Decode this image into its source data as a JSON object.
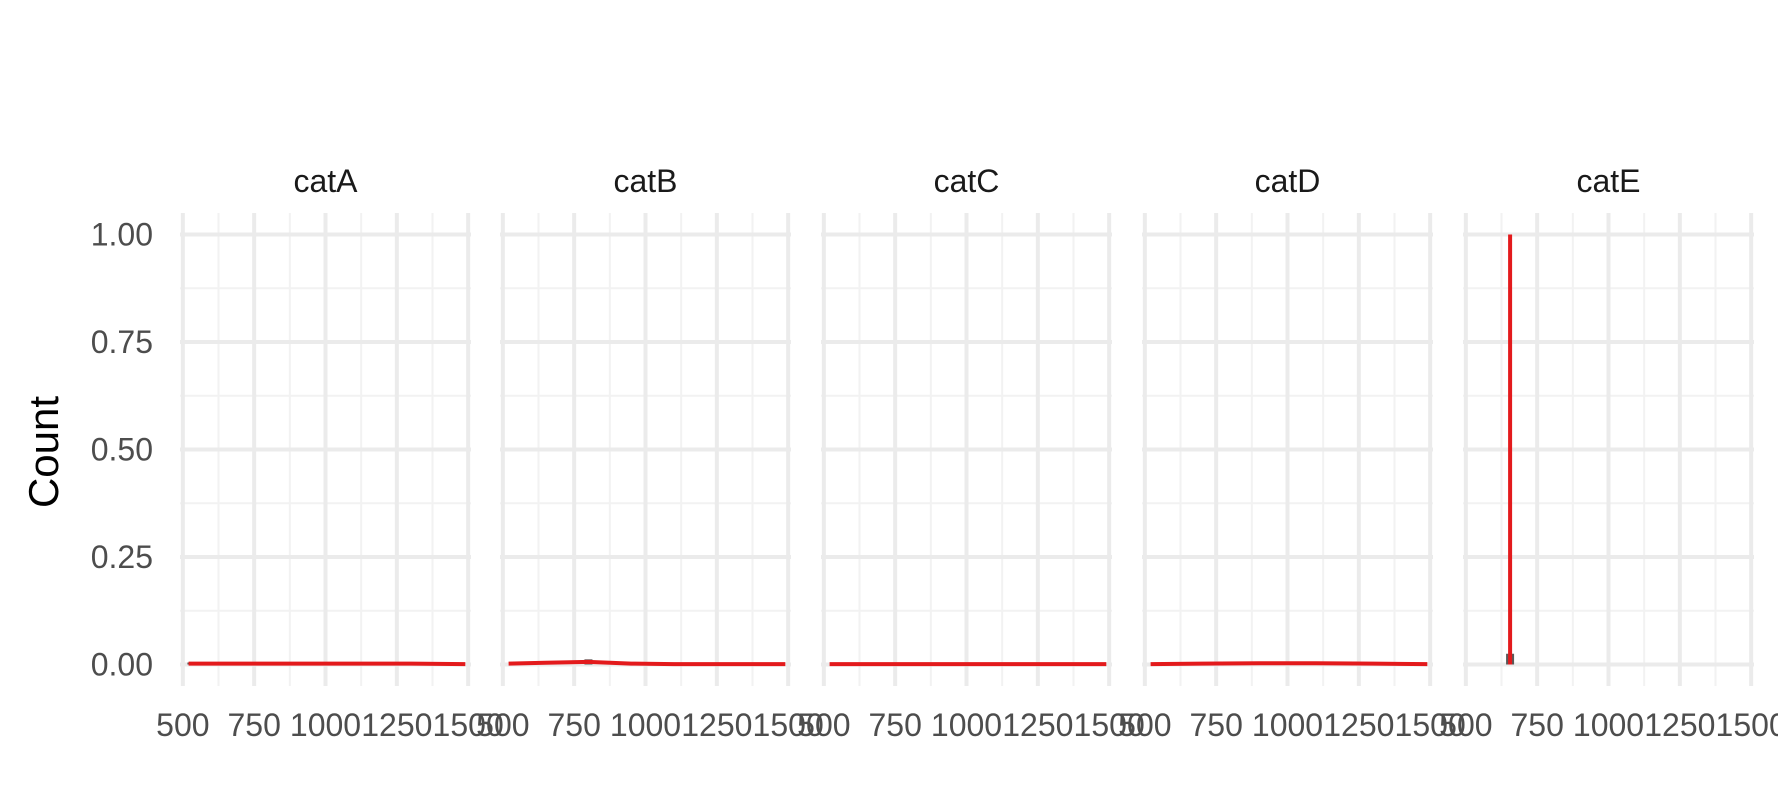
{
  "chart_data": {
    "type": "bar",
    "ylabel": "Count",
    "xlabel": "",
    "title": "",
    "xlim": [
      490,
      1510
    ],
    "ylim": [
      -0.05,
      1.05
    ],
    "x_ticks": [
      500,
      750,
      1000,
      1250,
      1500
    ],
    "x_tick_labels": [
      "500",
      "750",
      "1000",
      "1250",
      "1500"
    ],
    "y_ticks": [
      0.0,
      0.25,
      0.5,
      0.75,
      1.0
    ],
    "y_tick_labels": [
      "0.00",
      "0.25",
      "0.50",
      "0.75",
      "1.00"
    ],
    "grid": true,
    "colors": {
      "line": "#e31a1c",
      "bar": "#595959",
      "grid_major": "#ebebeb",
      "grid_minor": "#f2f2f2"
    },
    "panels": [
      {
        "name": "catA",
        "bars": [
          {
            "x": 530,
            "y": 0.003
          },
          {
            "x": 940,
            "y": 0.002
          },
          {
            "x": 1350,
            "y": 0.003
          }
        ],
        "line": {
          "x": [
            520,
            700,
            900,
            1100,
            1300,
            1490
          ],
          "y": [
            0.002,
            0.002,
            0.002,
            0.002,
            0.002,
            0.001
          ]
        }
      },
      {
        "name": "catB",
        "bars": [
          {
            "x": 800,
            "y": 0.012
          }
        ],
        "line": {
          "x": [
            520,
            650,
            800,
            950,
            1100,
            1300,
            1490
          ],
          "y": [
            0.002,
            0.004,
            0.006,
            0.002,
            0.001,
            0.001,
            0.001
          ]
        }
      },
      {
        "name": "catC",
        "bars": [],
        "line": {
          "x": [
            520,
            800,
            1100,
            1400,
            1490
          ],
          "y": [
            0.001,
            0.001,
            0.001,
            0.001,
            0.001
          ]
        }
      },
      {
        "name": "catD",
        "bars": [],
        "line": {
          "x": [
            520,
            700,
            900,
            1100,
            1300,
            1490
          ],
          "y": [
            0.001,
            0.002,
            0.003,
            0.003,
            0.002,
            0.001
          ]
        }
      },
      {
        "name": "catE",
        "bars": [
          {
            "x": 655,
            "y": 0.025
          }
        ],
        "line": {
          "x": [
            655,
            655
          ],
          "y": [
            0.0,
            1.0
          ]
        }
      }
    ]
  }
}
